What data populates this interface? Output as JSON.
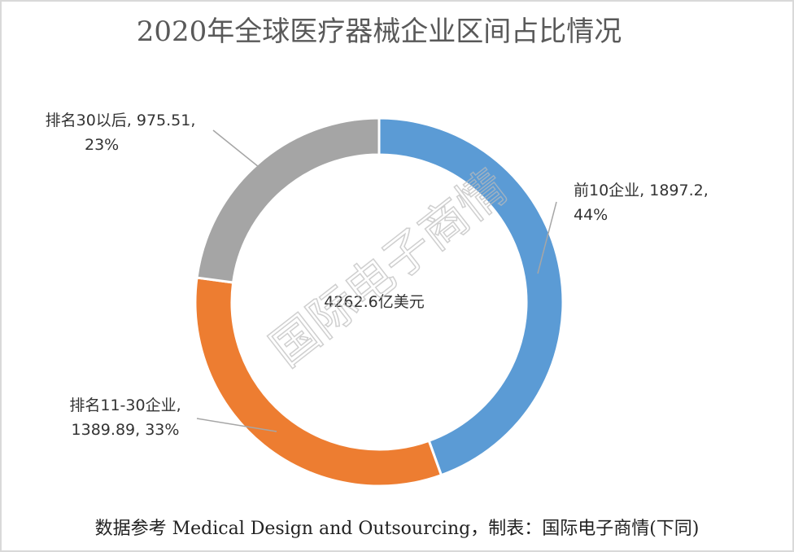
{
  "chart_data": {
    "type": "donut",
    "title": "2020年全球医疗器械企业区间占比情况",
    "categories": [
      "前10企业",
      "排名11-30企业",
      "排名30以后"
    ],
    "values": [
      1897.2,
      1389.89,
      975.51
    ],
    "value_labels": [
      [
        "前10企业, 1897.2,",
        "44%"
      ],
      [
        "排名11-30企业,",
        "1389.89, 33%"
      ],
      [
        "排名30以后, 975.51,",
        "23%"
      ]
    ],
    "colors": [
      "#5b9bd5",
      "#ed7d31",
      "#a5a5a5"
    ],
    "center_label": "4262.6亿美元",
    "watermark": "国际电子商情",
    "source": "数据参考 Medical Design and Outsourcing，制表：国际电子商情(下同)"
  }
}
